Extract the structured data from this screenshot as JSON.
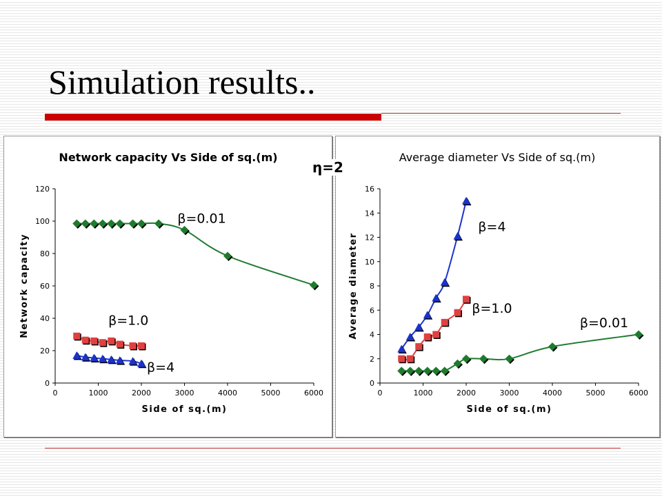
{
  "slide": {
    "title": "Simulation results..",
    "eta_label": "η=2"
  },
  "chart_data": [
    {
      "type": "line",
      "title": "Network capacity Vs Side of sq.(m)",
      "xlabel": "Side of sq.(m)",
      "ylabel": "Network capacity",
      "xlim": [
        0,
        6000
      ],
      "ylim": [
        0,
        120
      ],
      "xticks": [
        0,
        1000,
        2000,
        3000,
        4000,
        5000,
        6000
      ],
      "yticks": [
        0,
        20,
        40,
        60,
        80,
        100,
        120
      ],
      "series": [
        {
          "name": "β=0.01",
          "marker": "diamond",
          "color": "#1e7b2e",
          "markerColor": "#1e7b2e",
          "x": [
            500,
            700,
            900,
            1100,
            1300,
            1500,
            1800,
            2000,
            2400,
            3000,
            4000,
            6000
          ],
          "y": [
            98.5,
            98.5,
            98.5,
            98.5,
            98.5,
            98.5,
            98.5,
            98.5,
            98.5,
            94.5,
            78.5,
            60.5
          ]
        },
        {
          "name": "β=1.0",
          "marker": "square",
          "color": "#e04040",
          "markerColor": "#e04040",
          "x": [
            500,
            700,
            900,
            1100,
            1300,
            1500,
            1800,
            2000
          ],
          "y": [
            29,
            26.5,
            26,
            25,
            26,
            24,
            23,
            23
          ]
        },
        {
          "name": "β=4",
          "marker": "triangle",
          "color": "#1a33cc",
          "markerColor": "#1a33cc",
          "x": [
            500,
            700,
            900,
            1100,
            1300,
            1500,
            1800,
            2000
          ],
          "y": [
            17,
            16,
            15.5,
            15,
            14.5,
            14,
            13.5,
            12
          ]
        }
      ],
      "annotations": [
        {
          "text": "β=0.01",
          "x": 3400,
          "y": 99
        },
        {
          "text": "β=1.0",
          "x": 1700,
          "y": 36
        },
        {
          "text": "β=4",
          "x": 2450,
          "y": 7
        }
      ]
    },
    {
      "type": "line",
      "title": "Average diameter Vs Side of sq.(m)",
      "xlabel": "Side of sq.(m)",
      "ylabel": "Average diameter",
      "xlim": [
        0,
        6000
      ],
      "ylim": [
        0,
        16
      ],
      "xticks": [
        0,
        1000,
        2000,
        3000,
        4000,
        5000,
        6000
      ],
      "yticks": [
        0,
        2,
        4,
        6,
        8,
        10,
        12,
        14,
        16
      ],
      "series": [
        {
          "name": "β=4",
          "marker": "triangle",
          "color": "#1a33cc",
          "markerColor": "#1a33cc",
          "x": [
            500,
            700,
            900,
            1100,
            1300,
            1500,
            1800,
            2000
          ],
          "y": [
            2.8,
            3.8,
            4.6,
            5.6,
            7.0,
            8.3,
            12.1,
            15.0
          ]
        },
        {
          "name": "β=1.0",
          "marker": "square",
          "color": "#e04040",
          "markerColor": "#e04040",
          "x": [
            500,
            700,
            900,
            1100,
            1300,
            1500,
            1800,
            2000
          ],
          "y": [
            2.0,
            2.0,
            3.0,
            3.8,
            4.0,
            5.0,
            5.8,
            6.9
          ]
        },
        {
          "name": "β=0.01",
          "marker": "diamond",
          "color": "#1e7b2e",
          "markerColor": "#1e7b2e",
          "x": [
            500,
            700,
            900,
            1100,
            1300,
            1500,
            1800,
            2000,
            2400,
            3000,
            4000,
            6000
          ],
          "y": [
            1.0,
            1.0,
            1.0,
            1.0,
            1.0,
            1.0,
            1.6,
            2.0,
            2.0,
            2.0,
            3.0,
            4.0
          ]
        }
      ],
      "annotations": [
        {
          "text": "β=4",
          "x": 2600,
          "y": 12.5
        },
        {
          "text": "β=1.0",
          "x": 2600,
          "y": 5.8
        },
        {
          "text": "β=0.01",
          "x": 5200,
          "y": 4.6
        }
      ]
    }
  ]
}
